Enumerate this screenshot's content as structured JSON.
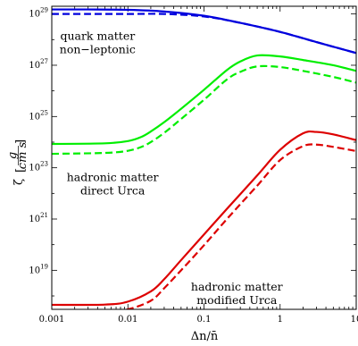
{
  "chart_data": {
    "type": "line",
    "title": "",
    "xlabel": "Δn/n̄",
    "ylabel": "ζ [g / cm s]",
    "xscale": "log",
    "yscale": "log",
    "xlim": [
      0.001,
      10
    ],
    "ylim": [
      3e+17,
      2e+29
    ],
    "grid": false,
    "x_ticks": [
      0.001,
      0.01,
      0.1,
      1,
      10
    ],
    "x_tick_labels": [
      "0.001",
      "0.01",
      "0.1",
      "1",
      "10"
    ],
    "y_ticks": [
      1e+19,
      1e+21,
      1e+23,
      1e+25,
      1e+27,
      1e+29
    ],
    "y_tick_labels": [
      {
        "base": "10",
        "exp": "19"
      },
      {
        "base": "10",
        "exp": "21"
      },
      {
        "base": "10",
        "exp": "23"
      },
      {
        "base": "10",
        "exp": "25"
      },
      {
        "base": "10",
        "exp": "27"
      },
      {
        "base": "10",
        "exp": "29"
      }
    ],
    "annotations": [
      {
        "lines": [
          "quark matter",
          "non−leptonic"
        ],
        "x": 0.004,
        "y": 1e+28
      },
      {
        "lines": [
          "hadronic matter",
          "direct Urca"
        ],
        "x": 0.0063,
        "y": 3e+22
      },
      {
        "lines": [
          "hadronic matter",
          "modified Urca"
        ],
        "x": 0.27,
        "y": 1.6e+18
      }
    ],
    "series": [
      {
        "color": "#0000dd",
        "style": "solid",
        "x": [
          0.001,
          0.003,
          0.01,
          0.03,
          0.1,
          0.3,
          1,
          3,
          10
        ],
        "y": [
          1.5e+29,
          1.5e+29,
          1.45e+29,
          1.25e+29,
          8.5e+28,
          4.5e+28,
          2e+28,
          8e+27,
          3e+27
        ]
      },
      {
        "color": "#0000dd",
        "style": "dashed",
        "x": [
          0.001,
          0.003,
          0.01,
          0.03,
          0.1,
          0.3,
          1,
          3,
          10
        ],
        "y": [
          1e+29,
          1e+29,
          1e+29,
          1e+29,
          8e+28,
          4.5e+28,
          2e+28,
          8e+27,
          3e+27
        ]
      },
      {
        "color": "#00ee00",
        "style": "solid",
        "x": [
          0.001,
          0.005,
          0.01,
          0.015,
          0.02,
          0.03,
          0.05,
          0.1,
          0.2,
          0.3,
          0.5,
          1,
          2,
          5,
          10
        ],
        "y": [
          8.5e+23,
          9e+23,
          1.1e+24,
          1.6e+24,
          2.6e+24,
          6e+24,
          2e+25,
          1.1e+26,
          6.5e+26,
          1.4e+27,
          2.4e+27,
          2.2e+27,
          1.6e+27,
          1e+27,
          6e+26
        ]
      },
      {
        "color": "#00ee00",
        "style": "dashed",
        "x": [
          0.001,
          0.005,
          0.01,
          0.015,
          0.02,
          0.03,
          0.05,
          0.1,
          0.2,
          0.3,
          0.5,
          1,
          2,
          5,
          10
        ],
        "y": [
          3.5e+23,
          3.8e+23,
          4.6e+23,
          6.5e+23,
          1e+24,
          2.3e+24,
          8e+24,
          4.5e+25,
          2.8e+26,
          5.5e+26,
          9e+26,
          8.5e+26,
          6e+26,
          3.5e+26,
          2.1e+26
        ]
      },
      {
        "color": "#dd0000",
        "style": "solid",
        "x": [
          0.001,
          0.005,
          0.01,
          0.02,
          0.03,
          0.05,
          0.1,
          0.2,
          0.5,
          1,
          2,
          3,
          5,
          10
        ],
        "y": [
          4.5e+17,
          4.6e+17,
          6e+17,
          1.5e+18,
          4.5e+18,
          2.5e+19,
          2.5e+20,
          2.5e+21,
          5e+22,
          5e+23,
          2.2e+24,
          2.5e+24,
          2e+24,
          1.2e+24
        ]
      },
      {
        "color": "#dd0000",
        "style": "dashed",
        "x": [
          0.001,
          0.005,
          0.01,
          0.02,
          0.03,
          0.05,
          0.1,
          0.2,
          0.5,
          1,
          2,
          3,
          5,
          10
        ],
        "y": [
          2.3e+17,
          2.4e+17,
          3e+17,
          6.5e+17,
          2e+18,
          1e+19,
          9.5e+19,
          1e+21,
          2e+22,
          2e+23,
          7e+23,
          8e+23,
          6.5e+23,
          4.5e+23
        ]
      }
    ]
  }
}
